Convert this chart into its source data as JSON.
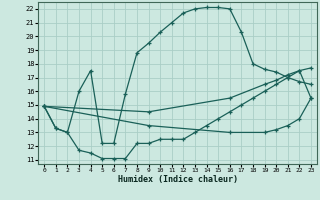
{
  "xlabel": "Humidex (Indice chaleur)",
  "bg_color": "#cce8e0",
  "grid_color": "#aacec6",
  "line_color": "#1a6058",
  "xlim": [
    -0.5,
    23.5
  ],
  "ylim": [
    10.7,
    22.5
  ],
  "xticks": [
    0,
    1,
    2,
    3,
    4,
    5,
    6,
    7,
    8,
    9,
    10,
    11,
    12,
    13,
    14,
    15,
    16,
    17,
    18,
    19,
    20,
    21,
    22,
    23
  ],
  "yticks": [
    11,
    12,
    13,
    14,
    15,
    16,
    17,
    18,
    19,
    20,
    21,
    22
  ],
  "line_upper_x": [
    0,
    1,
    2,
    3,
    4,
    5,
    6,
    7,
    8,
    9,
    10,
    11,
    12,
    13,
    14,
    15,
    16,
    17,
    18,
    19,
    20,
    21,
    22,
    23
  ],
  "line_upper_y": [
    14.9,
    13.3,
    13.0,
    16.0,
    17.5,
    12.2,
    12.2,
    15.8,
    18.8,
    19.5,
    20.3,
    21.0,
    21.7,
    22.0,
    22.1,
    22.1,
    22.0,
    20.3,
    18.0,
    17.6,
    17.4,
    17.0,
    16.7,
    16.5
  ],
  "line_lower_x": [
    0,
    1,
    2,
    3,
    4,
    5,
    6,
    7,
    8,
    9,
    10,
    11,
    12,
    13,
    14,
    15,
    16,
    17,
    18,
    19,
    20,
    21,
    22,
    23
  ],
  "line_lower_y": [
    14.9,
    13.3,
    13.0,
    11.7,
    11.5,
    11.1,
    11.1,
    11.1,
    12.2,
    12.2,
    12.5,
    12.5,
    12.5,
    13.0,
    13.5,
    14.0,
    14.5,
    15.0,
    15.5,
    16.0,
    16.5,
    17.0,
    17.5,
    15.5
  ],
  "line_diag_upper_x": [
    0,
    9,
    16,
    19,
    20,
    21,
    22,
    23
  ],
  "line_diag_upper_y": [
    14.9,
    14.5,
    15.5,
    16.5,
    16.8,
    17.2,
    17.5,
    17.7
  ],
  "line_diag_lower_x": [
    0,
    9,
    16,
    19,
    20,
    21,
    22,
    23
  ],
  "line_diag_lower_y": [
    14.9,
    13.5,
    13.0,
    13.0,
    13.2,
    13.5,
    14.0,
    15.5
  ]
}
